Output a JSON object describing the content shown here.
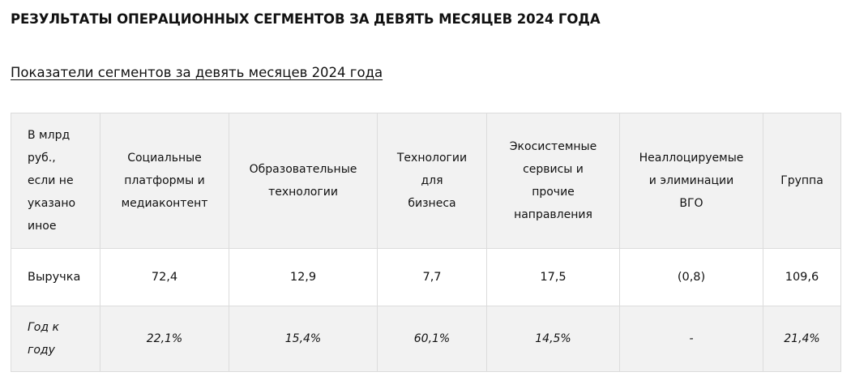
{
  "page_title": "РЕЗУЛЬТАТЫ ОПЕРАЦИОННЫХ СЕГМЕНТОВ ЗА ДЕВЯТЬ МЕСЯЦЕВ 2024 ГОДА",
  "section_link": "Показатели сегментов за девять месяцев 2024 года",
  "table": {
    "headers": [
      [
        "В млрд",
        "руб.,",
        "если не",
        "указано",
        "иное"
      ],
      [
        "Социальные",
        "платформы и",
        "медиаконтент"
      ],
      [
        "Образовательные",
        "технологии"
      ],
      [
        "Технологии",
        "для",
        "бизнеса"
      ],
      [
        "Экосистемные",
        "сервисы и",
        "прочие",
        "направления"
      ],
      [
        "Неаллоцируемые",
        "и элиминации",
        "ВГО"
      ],
      [
        "Группа"
      ]
    ],
    "rows": [
      {
        "label": "Выручка",
        "values": [
          "72,4",
          "12,9",
          "7,7",
          "17,5",
          "(0,8)",
          "109,6"
        ]
      },
      {
        "label_lines": [
          "Год к",
          "году"
        ],
        "values": [
          "22,1%",
          "15,4%",
          "60,1%",
          "14,5%",
          "-",
          "21,4%"
        ]
      }
    ]
  }
}
